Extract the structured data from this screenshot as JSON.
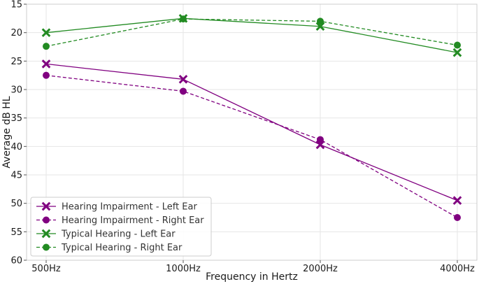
{
  "chart_data": {
    "type": "line",
    "title": "",
    "xlabel": "Frequency in Hertz",
    "ylabel": "Average dB HL",
    "categories": [
      "500Hz",
      "1000Hz",
      "2000Hz",
      "4000Hz"
    ],
    "y_ticks": [
      "15",
      "20",
      "25",
      "30",
      "35",
      "40",
      "45",
      "50",
      "55",
      "60"
    ],
    "ylim": [
      15,
      60
    ],
    "y_inverted": true,
    "grid": true,
    "legend_position": "bottom-left",
    "series": [
      {
        "name": "Hearing Impairment - Left Ear",
        "values": [
          25.5,
          28.2,
          39.7,
          49.5
        ],
        "color": "#800080",
        "marker": "x",
        "dash": "solid"
      },
      {
        "name": "Hearing Impairment - Right Ear",
        "values": [
          27.5,
          30.3,
          38.8,
          52.5
        ],
        "color": "#800080",
        "marker": "circle",
        "dash": "dashed"
      },
      {
        "name": "Typical Hearing - Left Ear",
        "values": [
          20.0,
          17.5,
          18.9,
          23.5
        ],
        "color": "#228b22",
        "marker": "x",
        "dash": "solid"
      },
      {
        "name": "Typical Hearing - Right Ear",
        "values": [
          22.4,
          17.6,
          18.0,
          22.2
        ],
        "color": "#228b22",
        "marker": "circle",
        "dash": "dashed"
      }
    ]
  }
}
